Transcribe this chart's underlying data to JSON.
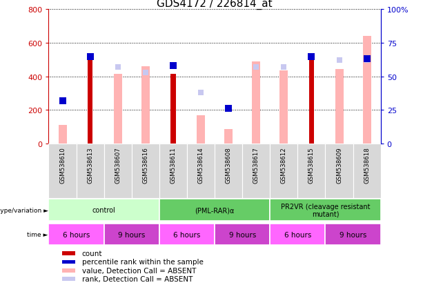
{
  "title": "GDS4172 / 226814_at",
  "samples": [
    "GSM538610",
    "GSM538613",
    "GSM538607",
    "GSM538616",
    "GSM538611",
    "GSM538614",
    "GSM538608",
    "GSM538617",
    "GSM538612",
    "GSM538615",
    "GSM538609",
    "GSM538618"
  ],
  "count": [
    0,
    530,
    0,
    0,
    415,
    0,
    0,
    0,
    0,
    500,
    0,
    0
  ],
  "percentile_rank": [
    32,
    65,
    0,
    0,
    58,
    0,
    26,
    0,
    0,
    65,
    0,
    63
  ],
  "value_absent": [
    110,
    0,
    415,
    460,
    0,
    170,
    85,
    490,
    435,
    0,
    445,
    640
  ],
  "rank_absent": [
    32,
    0,
    57,
    53,
    0,
    38,
    26,
    57,
    57,
    0,
    62,
    62
  ],
  "count_color": "#cc0000",
  "percentile_color": "#0000cc",
  "value_absent_color": "#ffb3b3",
  "rank_absent_color": "#c8c8f0",
  "ylim_left": [
    0,
    800
  ],
  "ylim_right": [
    0,
    100
  ],
  "yticks_left": [
    0,
    200,
    400,
    600,
    800
  ],
  "ytick_labels_left": [
    "0",
    "200",
    "400",
    "600",
    "800"
  ],
  "yticks_right": [
    0,
    25,
    50,
    75,
    100
  ],
  "ytick_labels_right": [
    "0",
    "25",
    "50",
    "75",
    "100%"
  ],
  "geno_ranges": [
    [
      0,
      3,
      "control",
      "#ccffcc"
    ],
    [
      4,
      7,
      "(PML-RAR)α",
      "#66cc66"
    ],
    [
      8,
      11,
      "PR2VR (cleavage resistant\nmutant)",
      "#66cc66"
    ]
  ],
  "time_ranges": [
    [
      0,
      1,
      "6 hours",
      "#ff66ff"
    ],
    [
      2,
      3,
      "9 hours",
      "#cc44cc"
    ],
    [
      4,
      5,
      "6 hours",
      "#ff66ff"
    ],
    [
      6,
      7,
      "9 hours",
      "#cc44cc"
    ],
    [
      8,
      9,
      "6 hours",
      "#ff66ff"
    ],
    [
      10,
      11,
      "9 hours",
      "#cc44cc"
    ]
  ],
  "fig_width": 6.13,
  "fig_height": 4.14,
  "dpi": 100
}
